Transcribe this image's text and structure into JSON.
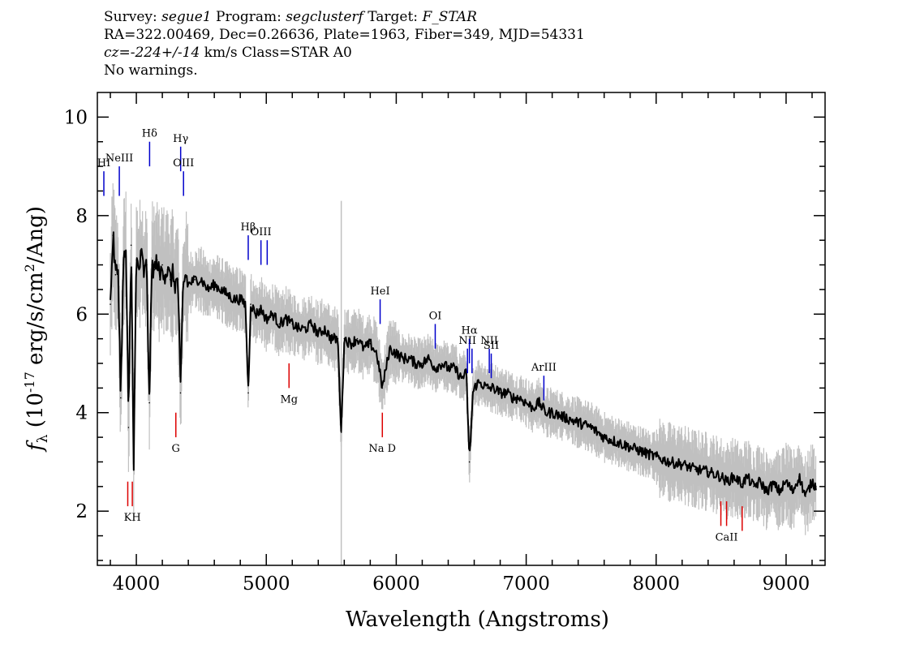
{
  "header": {
    "line1": {
      "survey_label": "Survey:",
      "survey": "segue1",
      "program_label": "Program:",
      "program": "segclusterf",
      "target_label": "Target:",
      "target": "F_STAR"
    },
    "line2": "RA=322.00469, Dec=0.26636, Plate=1963, Fiber=349, MJD=54331",
    "line3": {
      "cz": "cz=-224+/-14",
      "rest": " km/s Class=STAR A0"
    },
    "line4": "No warnings."
  },
  "chart_data": {
    "type": "line",
    "xlabel": "Wavelength (Angstroms)",
    "ylabel_parts": {
      "f": "f",
      "sub": "λ",
      "pre": " (10",
      "exp1": "-17",
      "mid": " erg/s/cm",
      "exp2": "2",
      "post": "/Ang)"
    },
    "xlim": [
      3700,
      9300
    ],
    "ylim": [
      0.9,
      10.5
    ],
    "x_ticks": [
      4000,
      5000,
      6000,
      7000,
      8000,
      9000
    ],
    "y_ticks": [
      2,
      4,
      6,
      8,
      10
    ],
    "grid": false,
    "series": [
      {
        "role": "spectrum",
        "color": "#000000",
        "x": [
          3800,
          3820,
          3840,
          3860,
          3880,
          3900,
          3920,
          3940,
          3960,
          3980,
          4000,
          4020,
          4040,
          4060,
          4080,
          4100,
          4120,
          4140,
          4160,
          4180,
          4200,
          4220,
          4240,
          4260,
          4280,
          4300,
          4320,
          4340,
          4360,
          4380,
          4400,
          4450,
          4500,
          4550,
          4600,
          4650,
          4700,
          4750,
          4800,
          4840,
          4861,
          4880,
          4920,
          4960,
          5000,
          5050,
          5100,
          5150,
          5200,
          5250,
          5300,
          5350,
          5400,
          5450,
          5500,
          5550,
          5577,
          5600,
          5650,
          5700,
          5750,
          5800,
          5850,
          5893,
          5950,
          6000,
          6050,
          6100,
          6150,
          6200,
          6250,
          6300,
          6350,
          6400,
          6450,
          6500,
          6540,
          6563,
          6590,
          6620,
          6650,
          6700,
          6750,
          6800,
          6850,
          6900,
          6950,
          7000,
          7050,
          7100,
          7150,
          7200,
          7300,
          7400,
          7500,
          7600,
          7700,
          7800,
          7900,
          8000,
          8100,
          8200,
          8300,
          8400,
          8500,
          8542,
          8600,
          8662,
          8700,
          8750,
          8800,
          8850,
          8900,
          8950,
          9000,
          9050,
          9100,
          9150,
          9200,
          9230
        ],
        "y": [
          6.2,
          7.6,
          6.8,
          6.9,
          4.3,
          7.0,
          7.3,
          3.7,
          7.4,
          3.0,
          7.1,
          6.9,
          7.2,
          6.8,
          7.0,
          4.2,
          7.0,
          6.9,
          7.1,
          6.7,
          7.0,
          6.8,
          6.9,
          6.7,
          6.8,
          6.6,
          6.7,
          4.4,
          6.6,
          6.8,
          6.6,
          6.7,
          6.7,
          6.5,
          6.6,
          6.5,
          6.4,
          6.3,
          6.3,
          6.2,
          4.4,
          6.2,
          6.0,
          6.1,
          5.9,
          6.0,
          5.8,
          5.9,
          5.8,
          5.7,
          5.7,
          5.8,
          5.6,
          5.7,
          5.5,
          5.5,
          3.6,
          5.5,
          5.4,
          5.5,
          5.3,
          5.4,
          5.2,
          4.5,
          5.3,
          5.2,
          5.1,
          5.1,
          5.0,
          5.0,
          5.1,
          4.9,
          5.0,
          4.9,
          4.9,
          4.7,
          4.8,
          3.0,
          4.4,
          4.6,
          4.6,
          4.5,
          4.5,
          4.4,
          4.4,
          4.3,
          4.3,
          4.2,
          4.1,
          4.2,
          4.0,
          4.0,
          3.9,
          3.8,
          3.7,
          3.5,
          3.4,
          3.3,
          3.2,
          3.1,
          3.0,
          2.95,
          2.85,
          2.8,
          2.7,
          2.6,
          2.7,
          2.55,
          2.7,
          2.5,
          2.6,
          2.4,
          2.55,
          2.4,
          2.6,
          2.4,
          2.7,
          2.3,
          2.6,
          2.5
        ]
      }
    ],
    "noise_color": "#c0c0c0",
    "sky_line_x": 5577,
    "emission_lines": [
      {
        "label": "HI",
        "x": 3750,
        "y_lo": 8.4,
        "y_hi": 8.9
      },
      {
        "label": "NeIII",
        "x": 3869,
        "y_lo": 8.4,
        "y_hi": 9.0
      },
      {
        "label": "Hδ",
        "x": 4102,
        "y_lo": 9.0,
        "y_hi": 9.5
      },
      {
        "label": "Hγ",
        "x": 4341,
        "y_lo": 8.9,
        "y_hi": 9.4
      },
      {
        "label": "OIII",
        "x": 4363,
        "y_lo": 8.4,
        "y_hi": 8.9
      },
      {
        "label": "Hβ",
        "x": 4861,
        "y_lo": 7.1,
        "y_hi": 7.6
      },
      {
        "label": "OIII",
        "x": 4959,
        "y_lo": 7.0,
        "y_hi": 7.5
      },
      {
        "label": "",
        "x": 5007,
        "y_lo": 7.0,
        "y_hi": 7.5
      },
      {
        "label": "HeI",
        "x": 5876,
        "y_lo": 5.8,
        "y_hi": 6.3
      },
      {
        "label": "OI",
        "x": 6300,
        "y_lo": 5.3,
        "y_hi": 5.8
      },
      {
        "label": "NII",
        "x": 6548,
        "y_lo": 4.8,
        "y_hi": 5.3
      },
      {
        "label": "Hα",
        "x": 6563,
        "y_lo": 5.0,
        "y_hi": 5.5
      },
      {
        "label": "",
        "x": 6583,
        "y_lo": 4.8,
        "y_hi": 5.3
      },
      {
        "label": "NII",
        "x": 6716,
        "y_lo": 4.8,
        "y_hi": 5.3
      },
      {
        "label": "SII",
        "x": 6731,
        "y_lo": 4.7,
        "y_hi": 5.2
      },
      {
        "label": "ArIII",
        "x": 7136,
        "y_lo": 4.25,
        "y_hi": 4.75
      }
    ],
    "absorption_lines": [
      {
        "label": "K",
        "x": 3934,
        "y_lo": 2.1,
        "y_hi": 2.6,
        "label_x": 3934
      },
      {
        "label": "H",
        "x": 3969,
        "y_lo": 2.1,
        "y_hi": 2.6,
        "label_x": 4000
      },
      {
        "label": "G",
        "x": 4304,
        "y_lo": 3.5,
        "y_hi": 4.0,
        "label_x": 4304
      },
      {
        "label": "Mg",
        "x": 5175,
        "y_lo": 4.5,
        "y_hi": 5.0,
        "label_x": 5175
      },
      {
        "label": "Na D",
        "x": 5893,
        "y_lo": 3.5,
        "y_hi": 4.0,
        "label_x": 5893
      },
      {
        "label": "CaII",
        "x": 8498,
        "y_lo": 1.7,
        "y_hi": 2.2,
        "label_x": 8542
      },
      {
        "label": "",
        "x": 8542,
        "y_lo": 1.7,
        "y_hi": 2.2,
        "label_x": 8542
      },
      {
        "label": "",
        "x": 8662,
        "y_lo": 1.6,
        "y_hi": 2.1,
        "label_x": 8662
      }
    ],
    "colors": {
      "emission": "#0000cc",
      "absorption": "#dd0000",
      "axis": "#000000"
    }
  }
}
